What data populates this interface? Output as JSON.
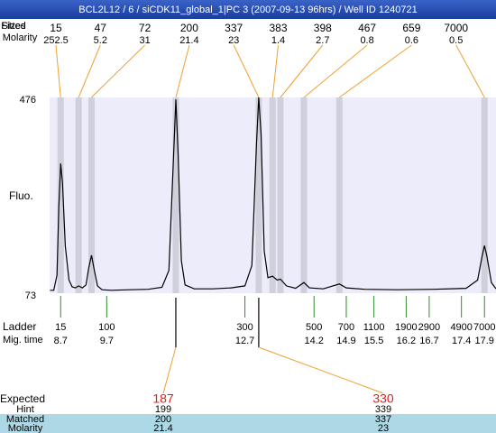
{
  "chart_data": {
    "type": "line",
    "title": "BCL2L12 / 6 / siCDK11_global_1|PC 3 (2007-09-13 96hrs) / Well ID 1240721",
    "y_label": "Fluo.",
    "ylim": [
      73,
      476
    ],
    "yticks": [
      73,
      476
    ],
    "xlim": [
      8.46,
      18.15
    ],
    "color": "#000000",
    "x": [
      8.47,
      8.55,
      8.62,
      8.66,
      8.7,
      8.74,
      8.8,
      8.88,
      8.95,
      9.02,
      9.09,
      9.17,
      9.25,
      9.31,
      9.37,
      9.43,
      9.5,
      9.6,
      9.8,
      10.2,
      10.6,
      10.9,
      11.05,
      11.14,
      11.2,
      11.25,
      11.32,
      11.4,
      11.6,
      12.0,
      12.4,
      12.7,
      12.85,
      12.95,
      13.0,
      13.05,
      13.12,
      13.2,
      13.3,
      13.4,
      13.47,
      13.6,
      13.8,
      13.98,
      14.1,
      14.4,
      14.75,
      14.9,
      15.3,
      16.0,
      16.8,
      17.5,
      17.75,
      17.85,
      17.9,
      17.95,
      18.05,
      18.15
    ],
    "values": [
      79,
      79,
      110,
      250,
      340,
      300,
      170,
      100,
      86,
      84,
      88,
      84,
      90,
      125,
      151,
      120,
      88,
      80,
      79,
      80,
      81,
      85,
      120,
      330,
      472,
      360,
      140,
      90,
      82,
      82,
      84,
      88,
      130,
      380,
      476,
      400,
      160,
      105,
      108,
      100,
      102,
      88,
      83,
      95,
      84,
      82,
      92,
      84,
      81,
      80,
      81,
      83,
      100,
      150,
      171,
      150,
      95,
      82
    ],
    "peaks": {
      "labels": [
        "Fitted",
        "Sizes",
        "Molarity"
      ],
      "sizes": [
        15,
        47,
        72,
        200,
        337,
        383,
        398,
        467,
        659,
        7000
      ],
      "molarity": [
        252.5,
        5.2,
        31,
        21.4,
        23,
        1.4,
        2.7,
        0.8,
        0.6,
        0.5
      ],
      "times": [
        8.7,
        9.09,
        9.37,
        11.2,
        13.0,
        13.3,
        13.47,
        13.98,
        14.75,
        17.9
      ]
    },
    "ladder": {
      "label": "Ladder",
      "time_label": "Mig. time",
      "sizes": [
        15,
        100,
        300,
        500,
        700,
        1100,
        1900,
        2900,
        4900,
        7000
      ],
      "times": [
        8.7,
        9.7,
        12.7,
        14.2,
        14.9,
        15.5,
        16.2,
        16.7,
        17.4,
        17.9
      ]
    },
    "expected": {
      "label": "Expected",
      "values": [
        187,
        330
      ],
      "hint_label": "Hint",
      "hint": [
        199,
        339
      ],
      "matched_label": "Matched",
      "matched": [
        200,
        337
      ],
      "molarity_label": "Molarity",
      "molarity": [
        21.4,
        23
      ],
      "peak_index": [
        3,
        4
      ]
    }
  }
}
